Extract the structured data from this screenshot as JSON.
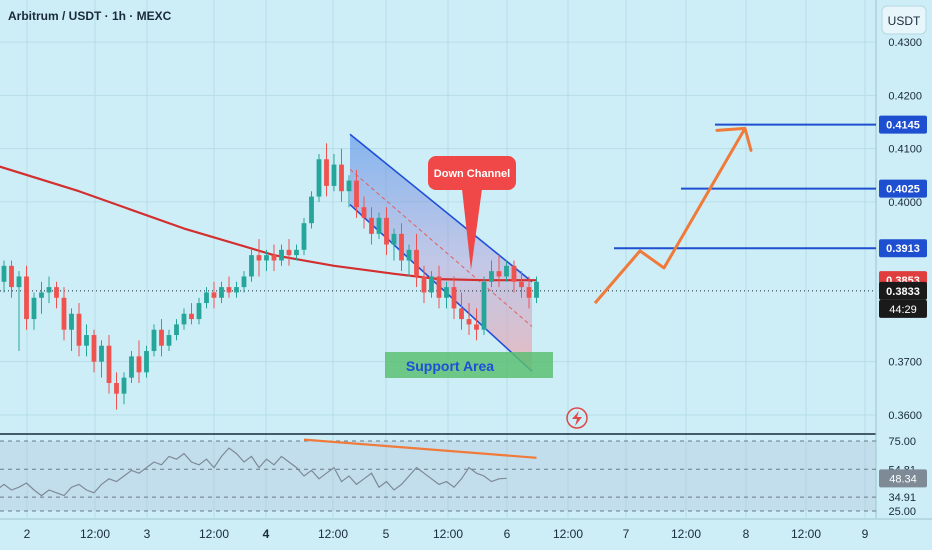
{
  "header": {
    "title": "Arbitrum / USDT · 1h · MEXC",
    "currency_button": "USDT"
  },
  "price_axis": {
    "ticks": [
      {
        "value": 0.43,
        "label": "0.4300"
      },
      {
        "value": 0.42,
        "label": "0.4200"
      },
      {
        "value": 0.41,
        "label": "0.4100"
      },
      {
        "value": 0.4,
        "label": "0.4000"
      },
      {
        "value": 0.37,
        "label": "0.3700"
      },
      {
        "value": 0.36,
        "label": "0.3600"
      }
    ],
    "badges": [
      {
        "value": 0.4145,
        "label": "0.4145",
        "color": "#1e4fd0"
      },
      {
        "value": 0.4025,
        "label": "0.4025",
        "color": "#1e4fd0"
      },
      {
        "value": 0.3913,
        "label": "0.3913",
        "color": "#1e4fd0"
      },
      {
        "value": 0.3853,
        "label": "0.3853",
        "color": "#e03e3e"
      },
      {
        "value": 0.3833,
        "label": "0.3833",
        "color": "#1a1a1a"
      }
    ],
    "countdown": "44:29"
  },
  "time_axis": {
    "labels": [
      "2",
      "12:00",
      "3",
      "12:00",
      "4",
      "12:00",
      "5",
      "12:00",
      "6",
      "12:00",
      "7",
      "12:00",
      "8",
      "12:00",
      "9"
    ]
  },
  "annotations": {
    "down_channel": "Down Channel",
    "support_area": "Support Area"
  },
  "rsi_axis": {
    "ticks": [
      {
        "value": 75,
        "label": "75.00"
      },
      {
        "value": 54.81,
        "label": "54.81"
      },
      {
        "value": 34.91,
        "label": "34.91"
      },
      {
        "value": 25,
        "label": "25.00"
      }
    ],
    "current": {
      "value": 48.34,
      "label": "48.34"
    }
  },
  "colors": {
    "background": "#cdeef7",
    "up": "#26a69a",
    "down": "#ef5350",
    "ma": "#d32f2f",
    "level": "#1e4fd0",
    "arrow": "#f07a3a",
    "channel": "#1f4ed8",
    "support": "#5cbf73",
    "rsi_line": "#7e8a96"
  },
  "chart_data": {
    "type": "candlestick",
    "title": "Arbitrum / USDT · 1h · MEXC",
    "ylim": [
      0.3568,
      0.4379
    ],
    "x_range_days": [
      "2",
      "3",
      "4",
      "5",
      "6",
      "7",
      "8",
      "9"
    ],
    "ohlc": [
      {
        "o": 0.385,
        "h": 0.389,
        "c": 0.388,
        "l": 0.383
      },
      {
        "o": 0.388,
        "h": 0.389,
        "c": 0.384,
        "l": 0.382
      },
      {
        "o": 0.384,
        "h": 0.387,
        "c": 0.386,
        "l": 0.372
      },
      {
        "o": 0.386,
        "h": 0.388,
        "c": 0.378,
        "l": 0.376
      },
      {
        "o": 0.378,
        "h": 0.383,
        "c": 0.382,
        "l": 0.376
      },
      {
        "o": 0.382,
        "h": 0.385,
        "c": 0.383,
        "l": 0.379
      },
      {
        "o": 0.383,
        "h": 0.386,
        "c": 0.384,
        "l": 0.381
      },
      {
        "o": 0.384,
        "h": 0.385,
        "c": 0.382,
        "l": 0.38
      },
      {
        "o": 0.382,
        "h": 0.384,
        "c": 0.376,
        "l": 0.374
      },
      {
        "o": 0.376,
        "h": 0.38,
        "c": 0.379,
        "l": 0.372
      },
      {
        "o": 0.379,
        "h": 0.381,
        "c": 0.373,
        "l": 0.371
      },
      {
        "o": 0.373,
        "h": 0.377,
        "c": 0.375,
        "l": 0.371
      },
      {
        "o": 0.375,
        "h": 0.376,
        "c": 0.37,
        "l": 0.368
      },
      {
        "o": 0.37,
        "h": 0.374,
        "c": 0.373,
        "l": 0.367
      },
      {
        "o": 0.373,
        "h": 0.375,
        "c": 0.366,
        "l": 0.364
      },
      {
        "o": 0.366,
        "h": 0.368,
        "c": 0.364,
        "l": 0.361
      },
      {
        "o": 0.364,
        "h": 0.368,
        "c": 0.367,
        "l": 0.362
      },
      {
        "o": 0.367,
        "h": 0.372,
        "c": 0.371,
        "l": 0.366
      },
      {
        "o": 0.371,
        "h": 0.374,
        "c": 0.368,
        "l": 0.366
      },
      {
        "o": 0.368,
        "h": 0.373,
        "c": 0.372,
        "l": 0.367
      },
      {
        "o": 0.372,
        "h": 0.377,
        "c": 0.376,
        "l": 0.371
      },
      {
        "o": 0.376,
        "h": 0.378,
        "c": 0.373,
        "l": 0.371
      },
      {
        "o": 0.373,
        "h": 0.376,
        "c": 0.375,
        "l": 0.372
      },
      {
        "o": 0.375,
        "h": 0.378,
        "c": 0.377,
        "l": 0.374
      },
      {
        "o": 0.377,
        "h": 0.38,
        "c": 0.379,
        "l": 0.376
      },
      {
        "o": 0.379,
        "h": 0.381,
        "c": 0.378,
        "l": 0.377
      },
      {
        "o": 0.378,
        "h": 0.382,
        "c": 0.381,
        "l": 0.377
      },
      {
        "o": 0.381,
        "h": 0.384,
        "c": 0.383,
        "l": 0.38
      },
      {
        "o": 0.383,
        "h": 0.385,
        "c": 0.382,
        "l": 0.38
      },
      {
        "o": 0.382,
        "h": 0.385,
        "c": 0.384,
        "l": 0.381
      },
      {
        "o": 0.384,
        "h": 0.386,
        "c": 0.383,
        "l": 0.382
      },
      {
        "o": 0.383,
        "h": 0.385,
        "c": 0.384,
        "l": 0.382
      },
      {
        "o": 0.384,
        "h": 0.387,
        "c": 0.386,
        "l": 0.383
      },
      {
        "o": 0.386,
        "h": 0.391,
        "c": 0.39,
        "l": 0.385
      },
      {
        "o": 0.39,
        "h": 0.393,
        "c": 0.389,
        "l": 0.386
      },
      {
        "o": 0.389,
        "h": 0.391,
        "c": 0.39,
        "l": 0.387
      },
      {
        "o": 0.39,
        "h": 0.392,
        "c": 0.389,
        "l": 0.387
      },
      {
        "o": 0.389,
        "h": 0.392,
        "c": 0.391,
        "l": 0.388
      },
      {
        "o": 0.391,
        "h": 0.393,
        "c": 0.39,
        "l": 0.388
      },
      {
        "o": 0.39,
        "h": 0.392,
        "c": 0.391,
        "l": 0.389
      },
      {
        "o": 0.391,
        "h": 0.397,
        "c": 0.396,
        "l": 0.39
      },
      {
        "o": 0.396,
        "h": 0.402,
        "c": 0.401,
        "l": 0.395
      },
      {
        "o": 0.401,
        "h": 0.409,
        "c": 0.408,
        "l": 0.4
      },
      {
        "o": 0.408,
        "h": 0.411,
        "c": 0.403,
        "l": 0.401
      },
      {
        "o": 0.403,
        "h": 0.409,
        "c": 0.407,
        "l": 0.402
      },
      {
        "o": 0.407,
        "h": 0.41,
        "c": 0.402,
        "l": 0.4
      },
      {
        "o": 0.402,
        "h": 0.405,
        "c": 0.404,
        "l": 0.399
      },
      {
        "o": 0.404,
        "h": 0.406,
        "c": 0.399,
        "l": 0.397
      },
      {
        "o": 0.399,
        "h": 0.401,
        "c": 0.397,
        "l": 0.395
      },
      {
        "o": 0.397,
        "h": 0.399,
        "c": 0.394,
        "l": 0.392
      },
      {
        "o": 0.394,
        "h": 0.398,
        "c": 0.397,
        "l": 0.393
      },
      {
        "o": 0.397,
        "h": 0.399,
        "c": 0.392,
        "l": 0.39
      },
      {
        "o": 0.392,
        "h": 0.395,
        "c": 0.394,
        "l": 0.389
      },
      {
        "o": 0.394,
        "h": 0.396,
        "c": 0.389,
        "l": 0.387
      },
      {
        "o": 0.389,
        "h": 0.392,
        "c": 0.391,
        "l": 0.386
      },
      {
        "o": 0.391,
        "h": 0.394,
        "c": 0.386,
        "l": 0.384
      },
      {
        "o": 0.386,
        "h": 0.388,
        "c": 0.383,
        "l": 0.381
      },
      {
        "o": 0.383,
        "h": 0.387,
        "c": 0.386,
        "l": 0.382
      },
      {
        "o": 0.386,
        "h": 0.388,
        "c": 0.382,
        "l": 0.38
      },
      {
        "o": 0.382,
        "h": 0.385,
        "c": 0.384,
        "l": 0.38
      },
      {
        "o": 0.384,
        "h": 0.386,
        "c": 0.38,
        "l": 0.378
      },
      {
        "o": 0.38,
        "h": 0.383,
        "c": 0.378,
        "l": 0.376
      },
      {
        "o": 0.378,
        "h": 0.381,
        "c": 0.377,
        "l": 0.375
      },
      {
        "o": 0.377,
        "h": 0.38,
        "c": 0.376,
        "l": 0.374
      },
      {
        "o": 0.376,
        "h": 0.386,
        "c": 0.385,
        "l": 0.375
      },
      {
        "o": 0.385,
        "h": 0.389,
        "c": 0.387,
        "l": 0.384
      },
      {
        "o": 0.387,
        "h": 0.39,
        "c": 0.386,
        "l": 0.384
      },
      {
        "o": 0.386,
        "h": 0.389,
        "c": 0.388,
        "l": 0.385
      },
      {
        "o": 0.388,
        "h": 0.389,
        "c": 0.385,
        "l": 0.383
      },
      {
        "o": 0.385,
        "h": 0.387,
        "c": 0.384,
        "l": 0.382
      },
      {
        "o": 0.384,
        "h": 0.386,
        "c": 0.382,
        "l": 0.38
      },
      {
        "o": 0.382,
        "h": 0.386,
        "c": 0.385,
        "l": 0.381
      }
    ],
    "moving_average": [
      {
        "candle": -24,
        "value": 0.416
      },
      {
        "candle": -6,
        "value": 0.409
      },
      {
        "candle": 10,
        "value": 0.402
      },
      {
        "candle": 24,
        "value": 0.395
      },
      {
        "candle": 36,
        "value": 0.39
      },
      {
        "candle": 44,
        "value": 0.388
      },
      {
        "candle": 52,
        "value": 0.3865
      },
      {
        "candle": 58,
        "value": 0.3855
      },
      {
        "candle": 64,
        "value": 0.3853
      },
      {
        "candle": 71,
        "value": 0.3853
      }
    ],
    "rsi": {
      "ylim": [
        20,
        80
      ],
      "values": [
        38,
        42,
        36,
        40,
        44,
        40,
        42,
        45,
        40,
        36,
        40,
        38,
        36,
        42,
        44,
        40,
        38,
        44,
        48,
        46,
        50,
        54,
        52,
        56,
        60,
        58,
        64,
        62,
        66,
        60,
        58,
        62,
        56,
        64,
        70,
        66,
        60,
        64,
        56,
        62,
        58,
        64,
        60,
        56,
        50,
        54,
        48,
        52,
        56,
        46,
        50,
        44,
        48,
        52,
        42,
        46,
        40,
        44,
        50,
        56,
        52,
        48,
        44,
        46,
        42,
        48,
        56,
        52,
        50,
        46,
        48,
        48.34
      ]
    },
    "rsi_divergence_line": {
      "from": {
        "candle": 40,
        "value": 76
      },
      "to": {
        "candle": 71,
        "value": 63
      }
    }
  }
}
